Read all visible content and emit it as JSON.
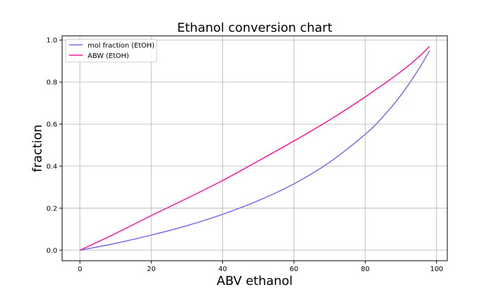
{
  "chart_data": {
    "type": "line",
    "title": "Ethanol conversion chart",
    "xlabel": "ABV ethanol",
    "ylabel": "fraction",
    "xlim": [
      -5,
      103
    ],
    "ylim": [
      -0.05,
      1.02
    ],
    "xticks": [
      0,
      20,
      40,
      60,
      80,
      100
    ],
    "xtick_labels": [
      "0",
      "20",
      "40",
      "60",
      "80",
      "100"
    ],
    "yticks": [
      0.0,
      0.2,
      0.4,
      0.6,
      0.8,
      1.0
    ],
    "ytick_labels": [
      "0.0",
      "0.2",
      "0.4",
      "0.6",
      "0.8",
      "1.0"
    ],
    "grid": true,
    "legend_position": "top-left",
    "series": [
      {
        "name": "mol fraction (EtOH)",
        "color": "#7b68ee",
        "x": [
          0,
          10,
          20,
          30,
          40,
          50,
          60,
          70,
          80,
          85,
          90,
          95,
          98
        ],
        "y": [
          0.0,
          0.033,
          0.072,
          0.117,
          0.171,
          0.236,
          0.316,
          0.419,
          0.552,
          0.636,
          0.738,
          0.862,
          0.949
        ]
      },
      {
        "name": "ABW (EtOH)",
        "color": "#ff1493",
        "x": [
          0,
          10,
          20,
          30,
          40,
          50,
          60,
          70,
          80,
          90,
          95,
          98
        ],
        "y": [
          0.0,
          0.08,
          0.165,
          0.247,
          0.332,
          0.425,
          0.52,
          0.62,
          0.73,
          0.85,
          0.92,
          0.97
        ]
      }
    ]
  }
}
